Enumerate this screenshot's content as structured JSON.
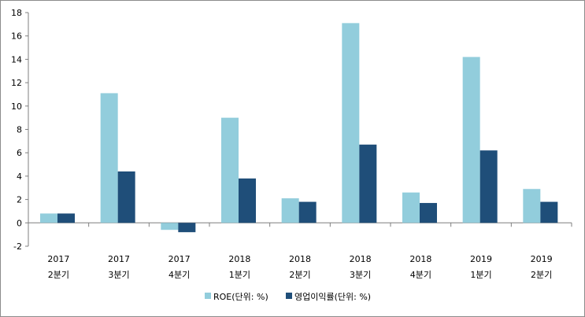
{
  "chart_data": {
    "type": "bar",
    "categories": [
      [
        "2017",
        "2분기"
      ],
      [
        "2017",
        "3분기"
      ],
      [
        "2017",
        "4분기"
      ],
      [
        "2018",
        "1분기"
      ],
      [
        "2018",
        "2분기"
      ],
      [
        "2018",
        "3분기"
      ],
      [
        "2018",
        "4분기"
      ],
      [
        "2019",
        "1분기"
      ],
      [
        "2019",
        "2분기"
      ]
    ],
    "series": [
      {
        "name": "ROE(단위: %)",
        "color": "#92cddc",
        "values": [
          0.8,
          11.1,
          -0.6,
          9.0,
          2.1,
          17.1,
          2.6,
          14.2,
          2.9
        ]
      },
      {
        "name": "영업이익률(단위: %)",
        "color": "#1f4e79",
        "values": [
          0.8,
          4.4,
          -0.8,
          3.8,
          1.8,
          6.7,
          1.7,
          6.2,
          1.8
        ]
      }
    ],
    "ylim": [
      -2,
      18
    ],
    "yticks": [
      -2,
      0,
      2,
      4,
      6,
      8,
      10,
      12,
      14,
      16,
      18
    ],
    "grid": false,
    "legend_position": "bottom",
    "title": "",
    "xlabel": "",
    "ylabel": ""
  }
}
